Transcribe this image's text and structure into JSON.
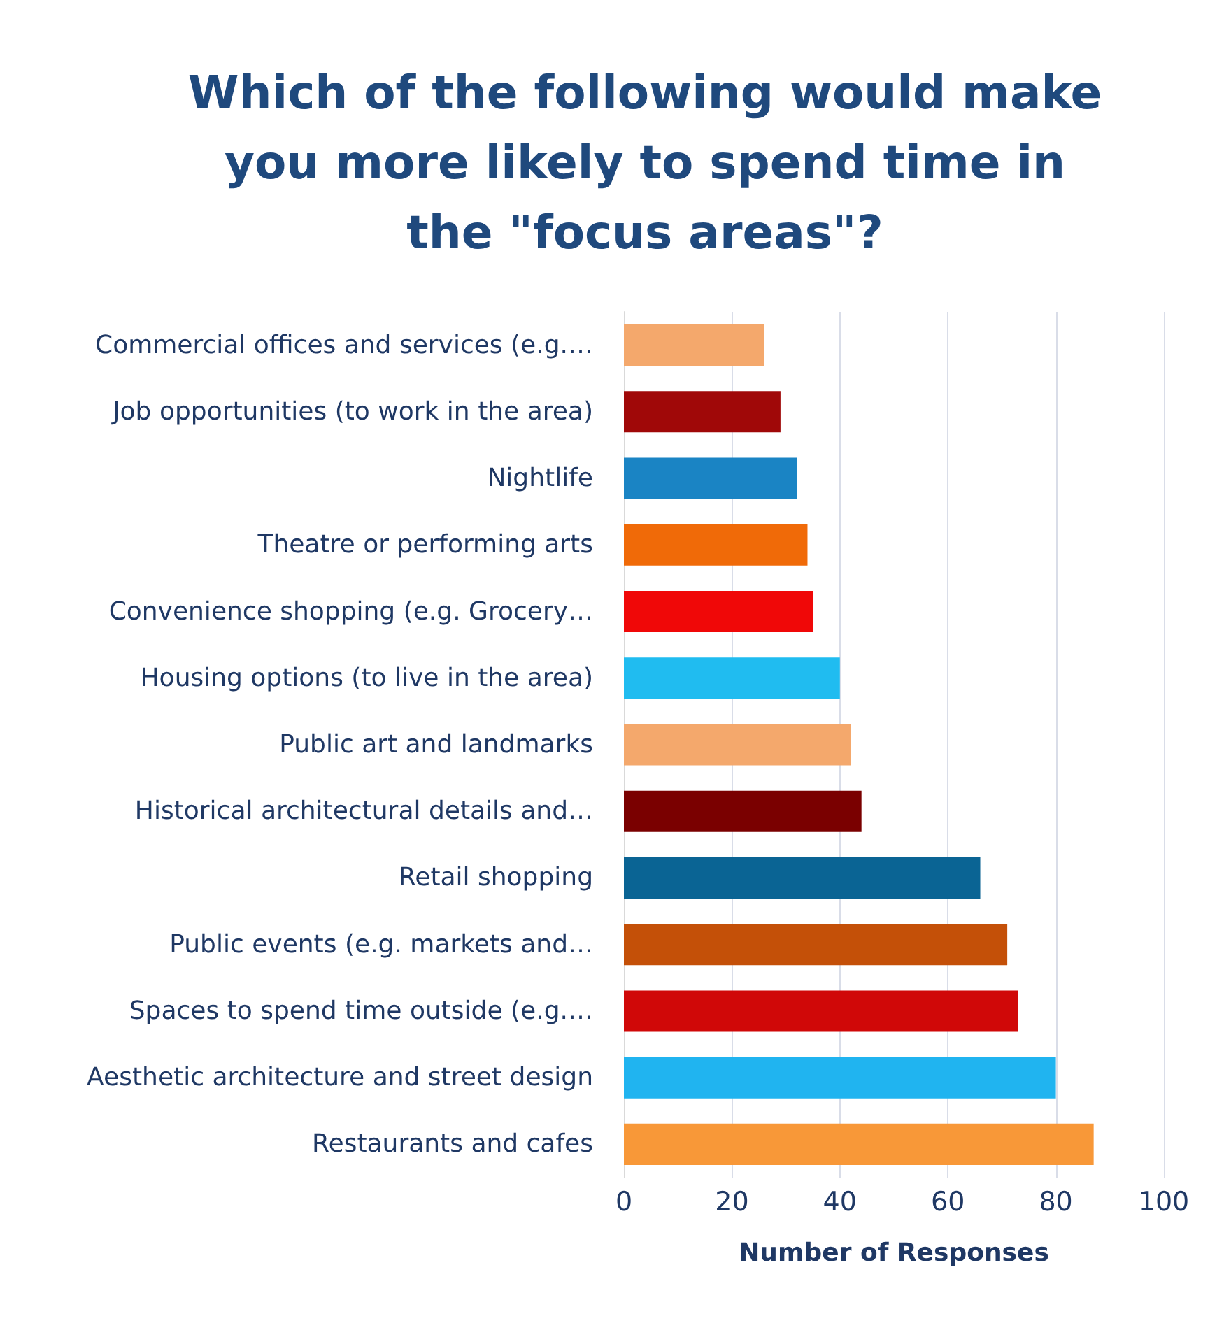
{
  "chart_data": {
    "type": "bar",
    "orientation": "horizontal",
    "title": "Which of the following would make\nyou more likely to spend time in\nthe \"focus areas\"?",
    "xlabel": "Number of Responses",
    "categories": [
      "Commercial offices and services (e.g.…",
      "Job opportunities (to work in the area)",
      "Nightlife",
      "Theatre or performing arts",
      "Convenience shopping (e.g. Grocery…",
      "Housing options (to live in the area)",
      "Public art and landmarks",
      "Historical architectural details and…",
      "Retail shopping",
      "Public events (e.g. markets and…",
      "Spaces to spend time outside (e.g.…",
      "Aesthetic architecture and street design",
      "Restaurants and cafes"
    ],
    "values": [
      26,
      29,
      32,
      34,
      35,
      40,
      42,
      44,
      66,
      71,
      73,
      80,
      87
    ],
    "colors": [
      "#f4a86c",
      "#a00808",
      "#1a84c4",
      "#f06a08",
      "#f00808",
      "#20bcf0",
      "#f4a86c",
      "#7a0000",
      "#0a6494",
      "#c45008",
      "#d00808",
      "#20b4f0",
      "#f89838"
    ],
    "xlim": [
      0,
      100
    ],
    "xticks": [
      0,
      20,
      40,
      60,
      80,
      100
    ],
    "grid": "x"
  }
}
